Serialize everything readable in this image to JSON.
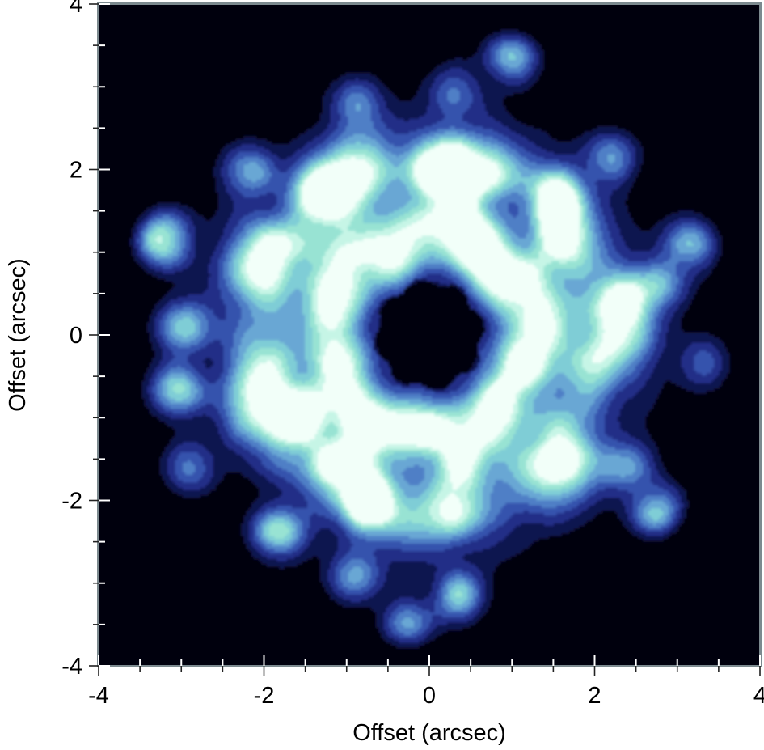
{
  "chart_data": {
    "type": "heatmap",
    "title": "",
    "xlabel": "Offset (arcsec)",
    "ylabel": "Offset (arcsec)",
    "xlim": [
      -4,
      4
    ],
    "ylim": [
      -4,
      4
    ],
    "x_ticks": [
      -4,
      -2,
      0,
      2,
      4
    ],
    "x_tick_labels": [
      "-4",
      "-2",
      "0",
      "2",
      "4"
    ],
    "y_ticks": [
      -4,
      -2,
      0,
      2,
      4
    ],
    "y_tick_labels": [
      "-4",
      "-2",
      "0",
      "2",
      "4"
    ],
    "minor_tick_step": 0.5,
    "grid": false,
    "colormap": [
      "#05050f",
      "#0f1450",
      "#232f87",
      "#3653ad",
      "#4f7fc6",
      "#69a7d4",
      "#7fcdd6",
      "#98e3d3",
      "#c6f5e6",
      "#f2fff9"
    ],
    "structure": {
      "central_hole_radius": 0.65,
      "inner_ring_radius": 1.2,
      "outer_ring_radius": 2.1,
      "clumps": [
        {
          "x": -3.2,
          "y": 1.15,
          "level": 0.95
        },
        {
          "x": -3.0,
          "y": 0.1,
          "level": 0.6
        },
        {
          "x": -3.05,
          "y": -0.65,
          "level": 0.7
        },
        {
          "x": -1.3,
          "y": 1.75,
          "level": 0.9
        },
        {
          "x": -1.6,
          "y": -1.0,
          "level": 0.9
        },
        {
          "x": -0.7,
          "y": -2.0,
          "level": 1.0
        },
        {
          "x": 0.1,
          "y": 2.05,
          "level": 0.85
        },
        {
          "x": 0.55,
          "y": 1.1,
          "level": 0.85
        },
        {
          "x": 1.55,
          "y": 1.6,
          "level": 0.8
        },
        {
          "x": 2.4,
          "y": 0.45,
          "level": 0.7
        },
        {
          "x": -1.85,
          "y": -2.4,
          "level": 0.7
        },
        {
          "x": 0.35,
          "y": -3.15,
          "level": 0.6
        },
        {
          "x": 2.75,
          "y": -2.1,
          "level": 0.65
        },
        {
          "x": 3.15,
          "y": 1.1,
          "level": 0.55
        },
        {
          "x": 2.85,
          "y": 0.6,
          "level": 0.5
        },
        {
          "x": 3.3,
          "y": -0.35,
          "level": 0.35
        },
        {
          "x": 1.0,
          "y": 3.35,
          "level": 0.55
        },
        {
          "x": 0.3,
          "y": 2.95,
          "level": 0.45
        },
        {
          "x": -2.9,
          "y": -1.6,
          "level": 0.45
        },
        {
          "x": -0.9,
          "y": -2.9,
          "level": 0.5
        },
        {
          "x": -0.25,
          "y": -3.5,
          "level": 0.45
        },
        {
          "x": 2.35,
          "y": -1.6,
          "level": 0.5
        },
        {
          "x": 2.2,
          "y": 2.15,
          "level": 0.45
        },
        {
          "x": -2.2,
          "y": 2.0,
          "level": 0.55
        },
        {
          "x": -0.9,
          "y": 2.8,
          "level": 0.45
        }
      ]
    }
  }
}
